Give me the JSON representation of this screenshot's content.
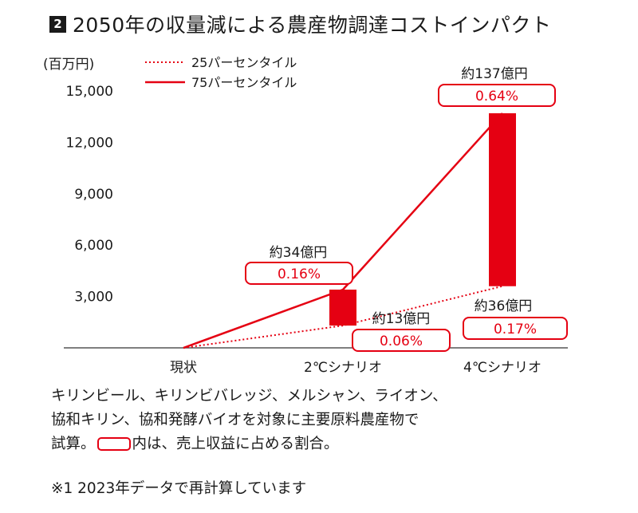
{
  "title": {
    "badge": "2",
    "text": "2050年の収量減による農産物調達コストインパクト"
  },
  "chart_data": {
    "type": "line",
    "unit_label": "(百万円)",
    "ylim": [
      0,
      15000
    ],
    "yticks": [
      {
        "value": 3000,
        "label": "3,000"
      },
      {
        "value": 6000,
        "label": "6,000"
      },
      {
        "value": 9000,
        "label": "9,000"
      },
      {
        "value": 12000,
        "label": "12,000"
      },
      {
        "value": 15000,
        "label": "15,000"
      }
    ],
    "categories": [
      "現状",
      "2℃シナリオ",
      "4℃シナリオ"
    ],
    "legend": {
      "placement": "top-left",
      "items": [
        {
          "name": "25パーセンタイル",
          "style": "dotted"
        },
        {
          "name": "75パーセンタイル",
          "style": "solid"
        }
      ]
    },
    "series": [
      {
        "name": "25パーセンタイル",
        "style": "dotted",
        "values": [
          0,
          1300,
          3600
        ]
      },
      {
        "name": "75パーセンタイル",
        "style": "solid",
        "values": [
          0,
          3400,
          13700
        ]
      }
    ],
    "annotations": [
      {
        "category_index": 1,
        "percentile": "75",
        "value": 3400,
        "text": "約34億円",
        "share": "0.16%"
      },
      {
        "category_index": 1,
        "percentile": "25",
        "value": 1300,
        "text": "約13億円",
        "share": "0.06%"
      },
      {
        "category_index": 2,
        "percentile": "75",
        "value": 13700,
        "text": "約137億円",
        "share": "0.64%"
      },
      {
        "category_index": 2,
        "percentile": "25",
        "value": 3600,
        "text": "約36億円",
        "share": "0.17%"
      }
    ],
    "grid": false,
    "colors": {
      "accent": "#e50012",
      "text": "#1a1a1a",
      "axis": "#555555"
    }
  },
  "caption": {
    "line1": "キリンビール、キリンビバレッジ、メルシャン、ライオン、",
    "line2": "協和キリン、協和発酵バイオを対象に主要原料農産物で",
    "line3_before": "試算。",
    "line3_after": "内は、売上収益に占める割合。"
  },
  "note": "※1 2023年データで再計算しています"
}
